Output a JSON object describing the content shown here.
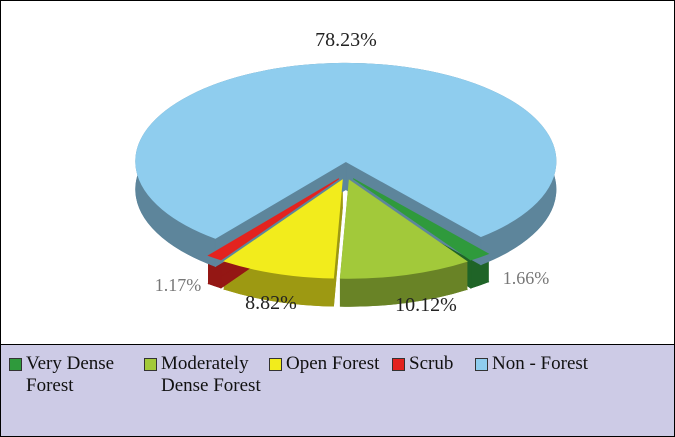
{
  "chart_data": {
    "type": "pie",
    "categories": [
      "Very Dense Forest",
      "Moderately Dense Forest",
      "Open Forest",
      "Scrub",
      "Non - Forest"
    ],
    "values": [
      1.66,
      10.12,
      8.82,
      1.17,
      78.23
    ],
    "value_labels": [
      "1.66%",
      "10.12%",
      "8.82%",
      "1.17%",
      "78.23%"
    ],
    "colors": [
      "#2f9a3c",
      "#a2c93a",
      "#f2ec1c",
      "#e3231f",
      "#8fcdee"
    ],
    "legend": "bottom"
  }
}
